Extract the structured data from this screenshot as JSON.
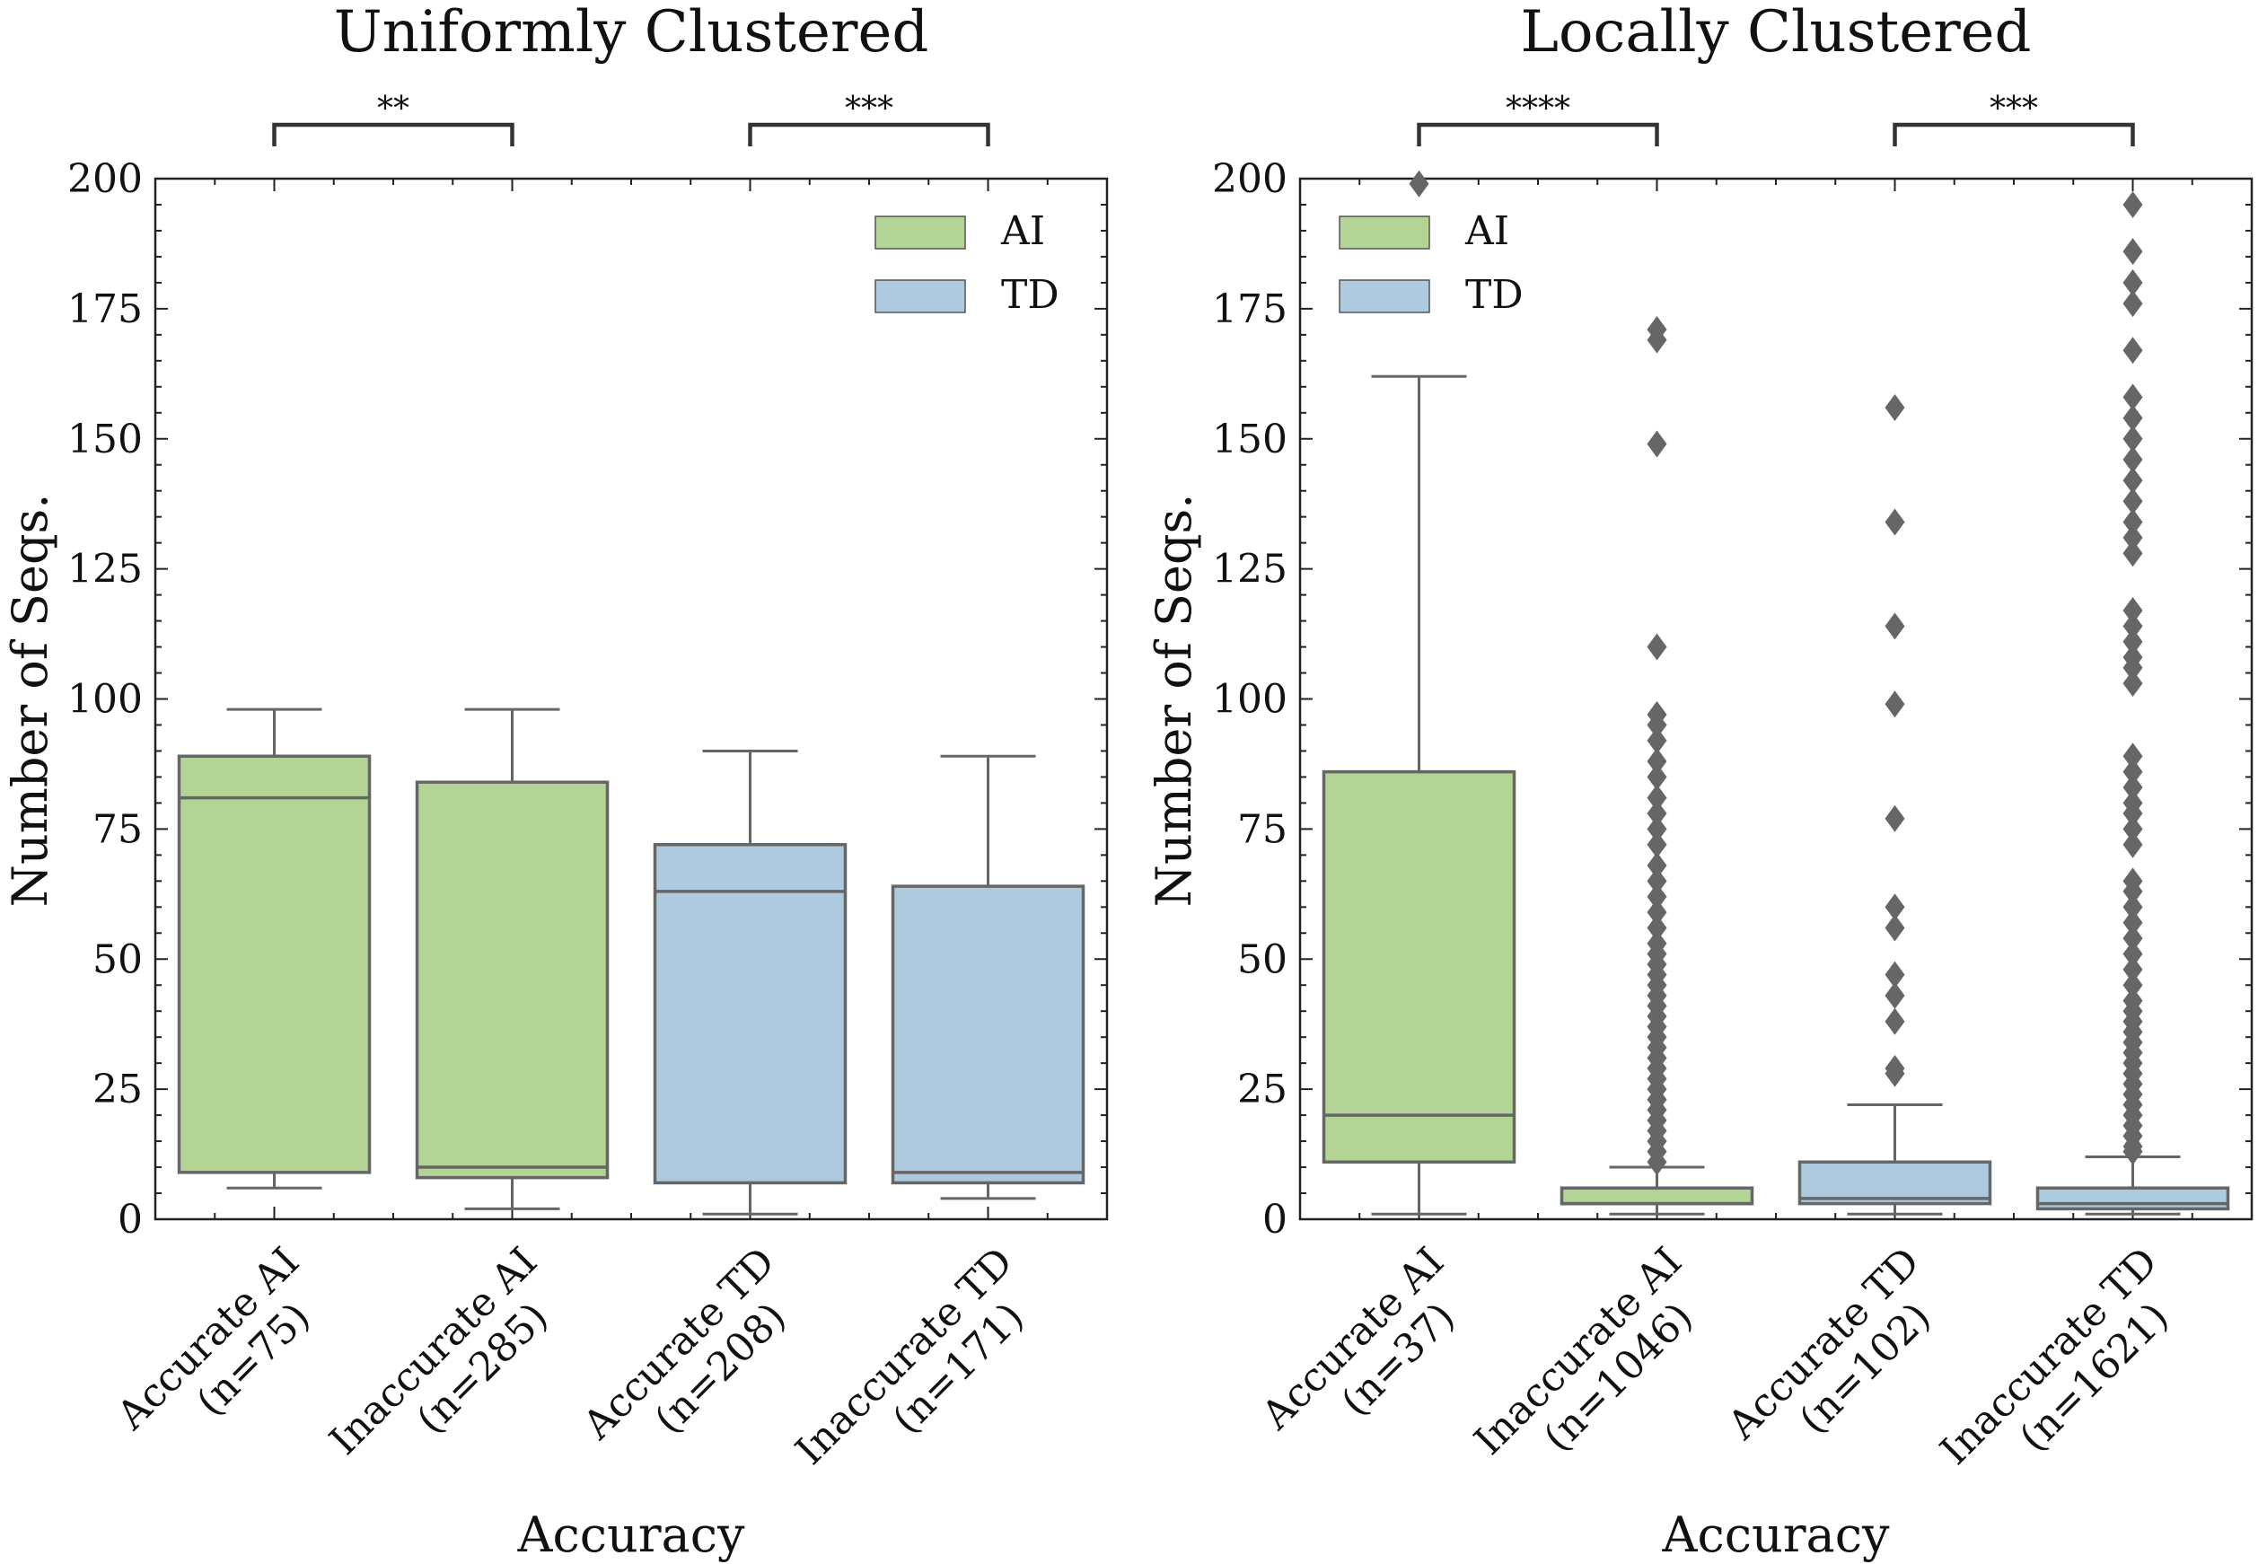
{
  "chart_data": [
    {
      "type": "box",
      "title": "Uniformly Clustered",
      "xlabel": "Accuracy",
      "ylabel": "Number of Seqs.",
      "ylim": [
        0,
        200
      ],
      "yticks": [
        "0",
        "25",
        "50",
        "75",
        "100",
        "125",
        "150",
        "175",
        "200"
      ],
      "legend_position": "top-right",
      "legend": [
        {
          "name": "AI",
          "color": "#b3d494"
        },
        {
          "name": "TD",
          "color": "#adcade"
        }
      ],
      "categories": [
        {
          "line1": "Accurate AI",
          "line2": "(n=75)",
          "group": "AI",
          "whisker_low": 6,
          "q1": 9,
          "median": 81,
          "q3": 89,
          "whisker_high": 98,
          "outliers": []
        },
        {
          "line1": "Inaccurate AI",
          "line2": "(n=285)",
          "group": "AI",
          "whisker_low": 2,
          "q1": 8,
          "median": 10,
          "q3": 84,
          "whisker_high": 98,
          "outliers": []
        },
        {
          "line1": "Accurate TD",
          "line2": "(n=208)",
          "group": "TD",
          "whisker_low": 1,
          "q1": 7,
          "median": 63,
          "q3": 72,
          "whisker_high": 90,
          "outliers": []
        },
        {
          "line1": "Inaccurate TD",
          "line2": "(n=171)",
          "group": "TD",
          "whisker_low": 4,
          "q1": 7,
          "median": 9,
          "q3": 64,
          "whisker_high": 89,
          "outliers": []
        }
      ],
      "significance": [
        {
          "from": 0,
          "to": 1,
          "label": "**"
        },
        {
          "from": 2,
          "to": 3,
          "label": "***"
        }
      ]
    },
    {
      "type": "box",
      "title": "Locally Clustered",
      "xlabel": "Accuracy",
      "ylabel": "Number of Seqs.",
      "ylim": [
        0,
        200
      ],
      "yticks": [
        "0",
        "25",
        "50",
        "75",
        "100",
        "125",
        "150",
        "175",
        "200"
      ],
      "legend_position": "top-left",
      "legend": [
        {
          "name": "AI",
          "color": "#b3d494"
        },
        {
          "name": "TD",
          "color": "#adcade"
        }
      ],
      "categories": [
        {
          "line1": "Accurate AI",
          "line2": "(n=37)",
          "group": "AI",
          "whisker_low": 1,
          "q1": 11,
          "median": 20,
          "q3": 86,
          "whisker_high": 162,
          "outliers": [
            199
          ]
        },
        {
          "line1": "Inaccurate AI",
          "line2": "(n=1046)",
          "group": "AI",
          "whisker_low": 1,
          "q1": 3,
          "median": 3,
          "q3": 6,
          "whisker_high": 10,
          "outliers": [
            11,
            13,
            15,
            17,
            19,
            21,
            23,
            25,
            27,
            29,
            31,
            33,
            35,
            37,
            39,
            41,
            43,
            45,
            47,
            49,
            51,
            53,
            56,
            59,
            62,
            65,
            68,
            72,
            75,
            78,
            81,
            85,
            88,
            92,
            95,
            97,
            110,
            149,
            169,
            171
          ]
        },
        {
          "line1": "Accurate TD",
          "line2": "(n=102)",
          "group": "TD",
          "whisker_low": 1,
          "q1": 3,
          "median": 4,
          "q3": 11,
          "whisker_high": 22,
          "outliers": [
            28,
            29,
            38,
            43,
            47,
            56,
            60,
            77,
            99,
            114,
            134,
            156
          ]
        },
        {
          "line1": "Inaccurate TD",
          "line2": "(n=1621)",
          "group": "TD",
          "whisker_low": 1,
          "q1": 2,
          "median": 3,
          "q3": 6,
          "whisker_high": 12,
          "outliers": [
            13,
            14,
            16,
            18,
            20,
            22,
            24,
            26,
            28,
            30,
            32,
            34,
            36,
            38,
            40,
            42,
            45,
            48,
            51,
            54,
            57,
            60,
            63,
            65,
            72,
            75,
            78,
            80,
            83,
            86,
            89,
            103,
            106,
            108,
            111,
            114,
            117,
            128,
            131,
            134,
            138,
            142,
            146,
            150,
            154,
            158,
            167,
            176,
            180,
            186,
            195
          ]
        }
      ],
      "significance": [
        {
          "from": 0,
          "to": 1,
          "label": "****"
        },
        {
          "from": 2,
          "to": 3,
          "label": "***"
        }
      ]
    }
  ]
}
